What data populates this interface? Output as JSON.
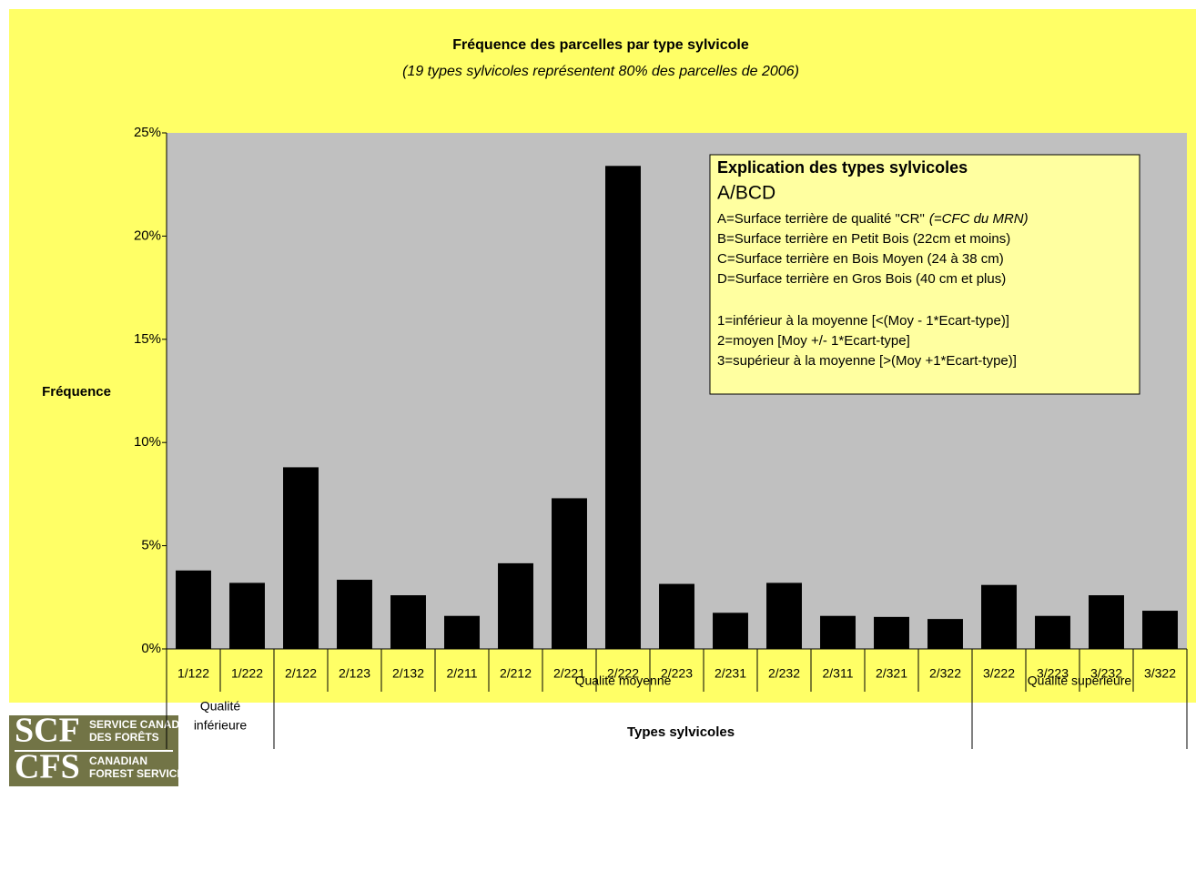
{
  "chart_data": {
    "type": "bar",
    "title": "Fréquence des parcelles par type sylvicole",
    "subtitle": "(19 types sylvicoles représentent 80% des parcelles de 2006)",
    "y_label": "Fréquence",
    "x_label": "Types sylvicoles",
    "categories": [
      "1/122",
      "1/222",
      "2/122",
      "2/123",
      "2/132",
      "2/211",
      "2/212",
      "2/221",
      "2/222",
      "2/223",
      "2/231",
      "2/232",
      "2/311",
      "2/321",
      "2/322",
      "3/222",
      "3/223",
      "3/232",
      "3/322"
    ],
    "values": [
      3.8,
      3.2,
      8.8,
      3.35,
      2.6,
      1.6,
      4.15,
      7.3,
      23.4,
      3.15,
      1.75,
      3.2,
      1.6,
      1.55,
      1.45,
      3.1,
      1.6,
      2.6,
      1.85
    ],
    "color": "#000000",
    "groups": [
      {
        "label": [
          "Qualité",
          "inférieure"
        ],
        "span": 2
      },
      {
        "label": [
          "Qualité moyenne"
        ],
        "span": 13
      },
      {
        "label": [
          "Qualité supérieure"
        ],
        "span": 4
      }
    ],
    "ylim": [
      0,
      25
    ],
    "yticks": [
      {
        "value": 0,
        "label": "0%"
      },
      {
        "value": 5,
        "label": "5%"
      },
      {
        "value": 10,
        "label": "10%"
      },
      {
        "value": 15,
        "label": "15%"
      },
      {
        "value": 20,
        "label": "20%"
      },
      {
        "value": 25,
        "label": "25%"
      }
    ],
    "grid": false,
    "annotation": {
      "title": "Explication des types sylvicoles",
      "subtitle": "A/BCD",
      "definitions": [
        {
          "text": "A=Surface terrière de qualité \"CR\"",
          "note": "(=CFC du MRN)"
        },
        {
          "text": "B=Surface terrière en Petit Bois (22cm et moins)"
        },
        {
          "text": "C=Surface terrière en Bois Moyen (24 à 38 cm)"
        },
        {
          "text": "D=Surface terrière en Gros Bois (40 cm et plus)"
        }
      ],
      "levels": [
        "1=inférieur à la moyenne [<(Moy - 1*Ecart-type)]",
        "2=moyen [Moy +/- 1*Ecart-type]",
        "3=supérieur à la moyenne [>(Moy +1*Ecart-type)]"
      ]
    }
  },
  "logo": {
    "fr_abbr": "SCF",
    "fr_name": [
      "SERVICE CANADIEN",
      "DES FORÊTS"
    ],
    "en_abbr": "CFS",
    "en_name": [
      "CANADIAN",
      "FOREST SERVICE"
    ]
  }
}
